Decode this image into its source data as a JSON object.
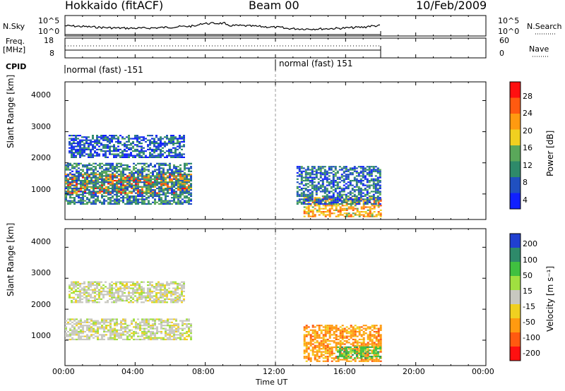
{
  "header": {
    "station": "Hokkaido (fitACF)",
    "beam": "Beam 00",
    "date": "10/Feb/2009"
  },
  "strip": {
    "nsky_label": "N.Sky",
    "nsearch_label": "N.Search",
    "nsky_ticks": [
      "10^5",
      "10^0"
    ],
    "nsearch_ticks": [
      "10^5",
      "10^0"
    ],
    "freq_label": "Freq.",
    "freq_unit": "[MHz]",
    "freq_ticks": [
      "18",
      "8"
    ],
    "nave_label": "Nave",
    "nave_ticks": [
      "60",
      "0"
    ],
    "cpid_label": "CPID",
    "cpid_segments": [
      {
        "label": "normal (fast) -151",
        "start_hour": 0
      },
      {
        "label": "normal (fast) 151",
        "start_hour": 12.0
      }
    ]
  },
  "time_axis": {
    "label": "Time UT",
    "ticks": [
      "00:00",
      "04:00",
      "08:00",
      "12:00",
      "16:00",
      "20:00",
      "00:00"
    ]
  },
  "range_axis": {
    "label": "Slant Range [km]",
    "ticks": [
      "1000",
      "2000",
      "3000",
      "4000"
    ]
  },
  "power_scale": {
    "label": "Power [dB]",
    "ticks": [
      "4",
      "8",
      "12",
      "16",
      "20",
      "24",
      "28"
    ],
    "colors": [
      "#1020ff",
      "#2050c0",
      "#2e8a6a",
      "#5aa85a",
      "#f0d020",
      "#ff9a10",
      "#ff5a10",
      "#ff1010"
    ]
  },
  "velocity_scale": {
    "label": "Velocity [m s⁻¹]",
    "ticks": [
      "200",
      "100",
      "50",
      "15",
      "-15",
      "-50",
      "-100",
      "-200"
    ],
    "colors": [
      "#2040d0",
      "#2e8a6a",
      "#40c040",
      "#a0e040",
      "#c8c8c0",
      "#f0d020",
      "#ff9a10",
      "#ff5a10",
      "#ff1010"
    ]
  },
  "chart_data": {
    "type": "heatmap",
    "title": "Hokkaido (fitACF) Beam 00 10/Feb/2009",
    "xlabel": "Time UT",
    "xlim_hours": [
      0,
      24
    ],
    "ylabel": "Slant Range [km]",
    "ylim_km": [
      180,
      4600
    ],
    "panels": [
      {
        "name": "Power [dB]",
        "zlim": [
          0,
          30
        ],
        "regions": [
          {
            "t_start": 0.0,
            "t_end": 7.2,
            "r_low": 1050,
            "r_high": 1650,
            "value": 24
          },
          {
            "t_start": 0.0,
            "t_end": 7.2,
            "r_low": 700,
            "r_high": 2000,
            "value": 8
          },
          {
            "t_start": 0.2,
            "t_end": 6.8,
            "r_low": 2200,
            "r_high": 2900,
            "value": 5
          },
          {
            "t_start": 13.6,
            "t_end": 18.0,
            "r_low": 300,
            "r_high": 900,
            "value": 20
          },
          {
            "t_start": 13.2,
            "t_end": 18.0,
            "r_low": 700,
            "r_high": 1900,
            "value": 6
          }
        ]
      },
      {
        "name": "Velocity [m s-1]",
        "zlim": [
          -250,
          250
        ],
        "regions": [
          {
            "t_start": 0.0,
            "t_end": 7.2,
            "r_low": 1000,
            "r_high": 1700,
            "value": 0
          },
          {
            "t_start": 0.2,
            "t_end": 6.8,
            "r_low": 2200,
            "r_high": 2900,
            "value": 0
          },
          {
            "t_start": 13.6,
            "t_end": 18.0,
            "r_low": 300,
            "r_high": 1500,
            "value": -100
          },
          {
            "t_start": 15.5,
            "t_end": 18.0,
            "r_low": 400,
            "r_high": 800,
            "value": 40
          }
        ]
      }
    ],
    "nsky_series": {
      "t_end": 18.0,
      "level": "mid-high"
    },
    "freq_series": {
      "t_end": 18.0,
      "value_mhz": 11
    },
    "nave_series": {
      "t_end": 18.0,
      "value": 30
    }
  }
}
